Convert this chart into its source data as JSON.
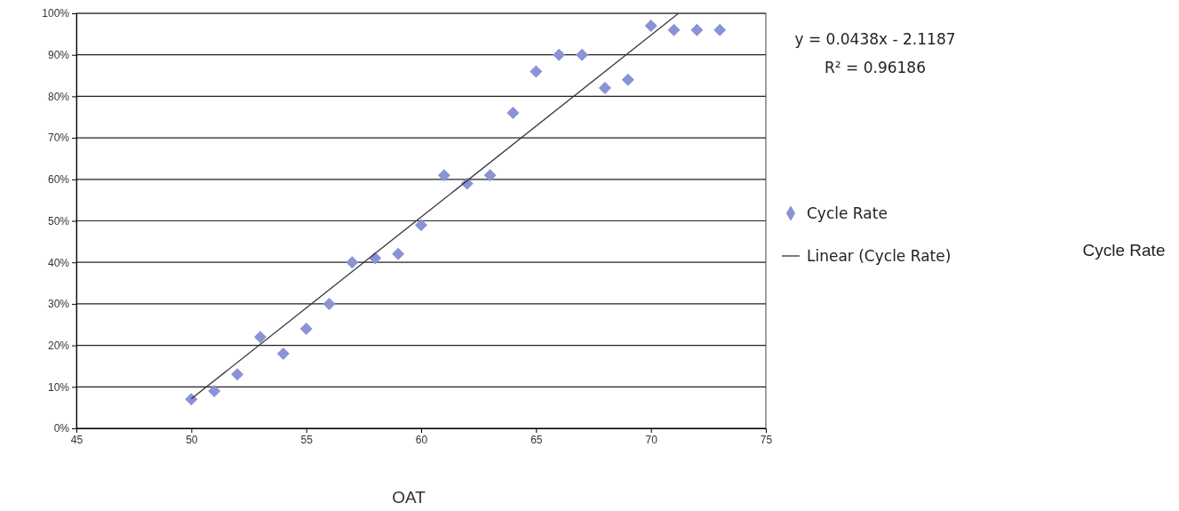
{
  "chart_data": {
    "type": "scatter",
    "xlabel": "OAT",
    "x": [
      50,
      51,
      52,
      53,
      54,
      55,
      56,
      57,
      58,
      59,
      60,
      61,
      62,
      63,
      64,
      65,
      66,
      67,
      68,
      69,
      70,
      71,
      72,
      73
    ],
    "series": [
      {
        "name": "Cycle Rate",
        "color": "#8a93d6",
        "marker": "diamond",
        "values": [
          7,
          9,
          13,
          22,
          18,
          24,
          30,
          40,
          41,
          42,
          49,
          61,
          59,
          61,
          76,
          86,
          90,
          90,
          82,
          84,
          97,
          96,
          96,
          96
        ]
      },
      {
        "name": "Linear (Cycle Rate)",
        "type": "line",
        "color": "#333333",
        "line_style": "solid",
        "marker": "none",
        "x": [
          50,
          71.2
        ],
        "values": [
          7.1,
          100
        ]
      }
    ],
    "xlim": [
      45,
      75
    ],
    "xticks": [
      45,
      50,
      55,
      60,
      65,
      70,
      75
    ],
    "ylim": [
      0,
      100
    ],
    "yticks": [
      {
        "value": 0,
        "label": "0%"
      },
      {
        "value": 10,
        "label": "10%"
      },
      {
        "value": 20,
        "label": "20%"
      },
      {
        "value": 30,
        "label": "30%"
      },
      {
        "value": 40,
        "label": "40%"
      },
      {
        "value": 50,
        "label": "50%"
      },
      {
        "value": 60,
        "label": "60%"
      },
      {
        "value": 70,
        "label": "70%"
      },
      {
        "value": 80,
        "label": "80%"
      },
      {
        "value": 90,
        "label": "90%"
      },
      {
        "value": 100,
        "label": "100%"
      }
    ],
    "grid": "y",
    "legend": "right",
    "annotations": [
      "y = 0.0438x - 2.1187",
      "R² = 0.96186",
      "Cycle Rate"
    ]
  }
}
